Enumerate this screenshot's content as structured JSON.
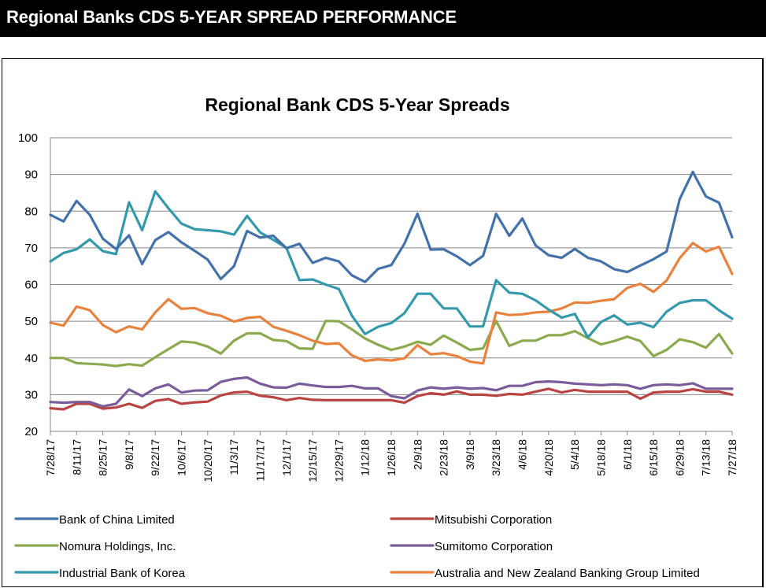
{
  "header": {
    "title": "Regional Banks CDS 5-YEAR SPREAD PERFORMANCE"
  },
  "chart_data": {
    "type": "line",
    "title": "Regional Bank CDS 5-Year Spreads",
    "xlabel": "",
    "ylabel": "",
    "ylim": [
      20,
      100
    ],
    "yticks": [
      "20",
      "30",
      "40",
      "50",
      "60",
      "70",
      "80",
      "90",
      "100"
    ],
    "grid": true,
    "legend_position": "bottom",
    "x": [
      "7/28/17",
      "8/4/17",
      "8/11/17",
      "8/18/17",
      "8/25/17",
      "9/1/17",
      "9/8/17",
      "9/15/17",
      "9/22/17",
      "9/29/17",
      "10/6/17",
      "10/13/17",
      "10/20/17",
      "10/27/17",
      "11/3/17",
      "11/10/17",
      "11/17/17",
      "11/24/17",
      "12/1/17",
      "12/8/17",
      "12/15/17",
      "12/22/17",
      "12/29/17",
      "1/5/18",
      "1/12/18",
      "1/19/18",
      "1/26/18",
      "2/2/18",
      "2/9/18",
      "2/16/18",
      "2/23/18",
      "3/2/18",
      "3/9/18",
      "3/16/18",
      "3/23/18",
      "3/30/18",
      "4/6/18",
      "4/13/18",
      "4/20/18",
      "4/27/18",
      "5/4/18",
      "5/11/18",
      "5/18/18",
      "5/25/18",
      "6/1/18",
      "6/8/18",
      "6/15/18",
      "6/22/18",
      "6/29/18",
      "7/6/18",
      "7/13/18",
      "7/20/18",
      "7/27/18"
    ],
    "xtick_labels": [
      "7/28/17",
      "8/11/17",
      "8/25/17",
      "9/8/17",
      "9/22/17",
      "10/6/17",
      "10/20/17",
      "11/3/17",
      "11/17/17",
      "12/1/17",
      "12/15/17",
      "12/29/17",
      "1/12/18",
      "1/26/18",
      "2/9/18",
      "2/23/18",
      "3/9/18",
      "3/23/18",
      "4/6/18",
      "4/20/18",
      "5/4/18",
      "5/18/18",
      "6/1/18",
      "6/15/18",
      "6/29/18",
      "7/13/18",
      "7/27/18"
    ],
    "series": [
      {
        "name": "Bank of China Limited",
        "color": "#4472A8",
        "values": [
          79,
          77.2,
          82.8,
          79,
          72.5,
          69.7,
          73.4,
          65.6,
          72.1,
          74.3,
          71.5,
          69.2,
          66.8,
          61.5,
          65,
          74.6,
          72.8,
          73.3,
          69.9,
          71.1,
          65.9,
          67.3,
          66.3,
          62.5,
          60.7,
          64.3,
          65.3,
          71.1,
          79.3,
          69.5,
          69.6,
          67.7,
          65.3,
          67.8,
          79.3,
          73.3,
          78,
          70.7,
          68,
          67.3,
          69.7,
          67.3,
          66.3,
          64.2,
          63.4,
          65.2,
          66.9,
          69,
          83.3,
          90.7,
          84,
          82.3,
          72.9
        ]
      },
      {
        "name": "Mitsubishi Corporation",
        "color": "#B94543",
        "values": [
          26.3,
          26,
          27.5,
          27.5,
          26.2,
          26.5,
          27.5,
          26.4,
          28.3,
          28.8,
          27.5,
          27.9,
          28.1,
          29.8,
          30.6,
          30.8,
          29.7,
          29.3,
          28.5,
          29.1,
          28.6,
          28.5,
          28.5,
          28.5,
          28.5,
          28.5,
          28.5,
          27.8,
          29.6,
          30.4,
          30,
          30.9,
          30,
          30,
          29.7,
          30.2,
          30,
          30.8,
          31.6,
          30.6,
          31.3,
          30.8,
          30.8,
          30.8,
          30.8,
          28.9,
          30.6,
          30.8,
          30.8,
          31.5,
          30.8,
          30.8,
          30
        ]
      },
      {
        "name": "Nomura Holdings, Inc.",
        "color": "#8BAA4F",
        "values": [
          40,
          40,
          38.6,
          38.4,
          38.2,
          37.8,
          38.3,
          37.9,
          40.2,
          42.4,
          44.5,
          44.2,
          43.1,
          41.2,
          44.7,
          46.7,
          46.7,
          44.9,
          44.6,
          42.6,
          42.5,
          50.1,
          50,
          47.8,
          45.3,
          43.6,
          42.2,
          43.1,
          44.4,
          43.6,
          46.1,
          44.2,
          42.2,
          42.6,
          50.1,
          43.3,
          44.7,
          44.7,
          46.2,
          46.2,
          47.3,
          45.4,
          43.7,
          44.6,
          45.8,
          44.6,
          40.5,
          42.2,
          45.1,
          44.3,
          42.8,
          46.5,
          41.2
        ]
      },
      {
        "name": "Sumitomo Corporation",
        "color": "#7B5C9A",
        "values": [
          28,
          27.8,
          28,
          28,
          26.8,
          27.5,
          31.4,
          29.6,
          31.7,
          32.8,
          30.6,
          31.1,
          31.2,
          33.5,
          34.3,
          34.7,
          33,
          32,
          31.9,
          33,
          32.5,
          32.1,
          32.1,
          32.4,
          31.7,
          31.7,
          29.6,
          29,
          31.1,
          32,
          31.6,
          32,
          31.6,
          31.8,
          31.2,
          32.4,
          32.4,
          33.4,
          33.6,
          33.4,
          33,
          32.8,
          32.6,
          32.8,
          32.6,
          31.6,
          32.6,
          32.8,
          32.6,
          33.1,
          31.6,
          31.6,
          31.6
        ]
      },
      {
        "name": "Industrial Bank of Korea",
        "color": "#3399AB",
        "values": [
          66.3,
          68.6,
          69.6,
          72.3,
          69.1,
          68.3,
          82.4,
          74.8,
          85.4,
          80.8,
          76.6,
          75.1,
          74.8,
          74.5,
          73.6,
          78.7,
          74.2,
          72.2,
          70,
          61.2,
          61.4,
          60,
          58.8,
          51.5,
          46.5,
          48.5,
          49.5,
          52.2,
          57.5,
          57.5,
          53.5,
          53.5,
          48.6,
          48.6,
          61.2,
          57.8,
          57.5,
          55.7,
          53.2,
          51,
          52,
          45.6,
          49.8,
          51.6,
          49.1,
          49.6,
          48.4,
          52.6,
          55,
          55.7,
          55.7,
          53,
          50.7
        ]
      },
      {
        "name": "Australia and New Zealand Banking Group Limited",
        "color": "#E8823F",
        "values": [
          49.6,
          48.8,
          54,
          53,
          49,
          47,
          48.6,
          47.8,
          52.4,
          56,
          53.4,
          53.6,
          52.2,
          51.5,
          49.9,
          50.9,
          51.2,
          48.5,
          47.4,
          46.2,
          44.7,
          43.8,
          44,
          40.7,
          39.2,
          39.6,
          39.3,
          39.9,
          43.5,
          41,
          41.3,
          40.5,
          39,
          38.5,
          52.4,
          51.7,
          51.9,
          52.4,
          52.6,
          53.5,
          55.1,
          55,
          55.6,
          56,
          59.1,
          60.2,
          58,
          61.1,
          67.2,
          71.3,
          69,
          70.3,
          62.9
        ]
      }
    ]
  }
}
